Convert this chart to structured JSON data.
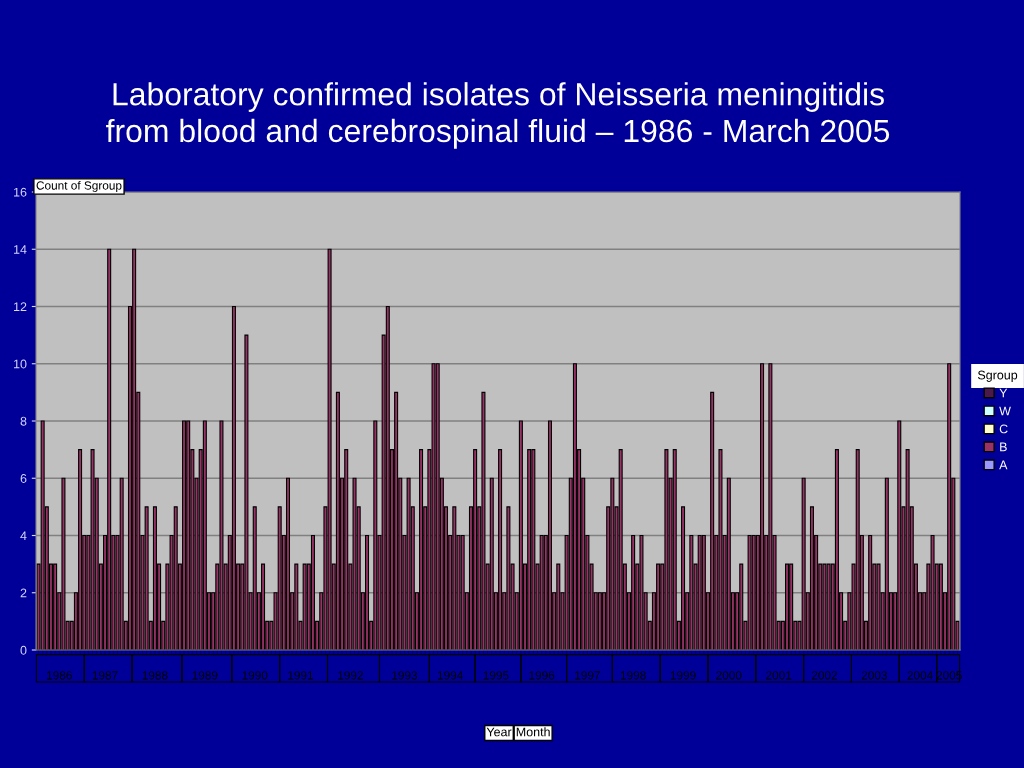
{
  "chart_data": {
    "type": "bar",
    "title": "Laboratory confirmed isolates of Neisseria meningitidis\nfrom blood and cerebrospinal fluid – 1986 - March 2005",
    "ylabel": "Count of Sgroup",
    "legend_title": "Sgroup",
    "legend": "right",
    "annotations": [
      "Year",
      "Month"
    ],
    "categories": [
      null,
      null,
      null,
      null,
      null,
      "1986",
      null,
      null,
      null,
      null,
      null,
      null,
      null,
      null,
      null,
      null,
      "1987",
      null,
      null,
      null,
      null,
      null,
      null,
      null,
      null,
      null,
      null,
      null,
      "1988",
      null,
      null,
      null,
      null,
      null,
      null,
      null,
      null,
      null,
      null,
      null,
      "1989",
      null,
      null,
      null,
      null,
      null,
      null,
      null,
      null,
      null,
      null,
      null,
      "1990",
      null,
      null,
      null,
      null,
      null,
      null,
      null,
      null,
      null,
      null,
      "1991",
      null,
      null,
      null,
      null,
      null,
      null,
      null,
      null,
      null,
      null,
      null,
      "1992",
      null,
      null,
      null,
      null,
      null,
      null,
      null,
      null,
      null,
      null,
      null,
      null,
      "1993",
      null,
      null,
      null,
      null,
      null,
      null,
      null,
      null,
      null,
      null,
      "1994",
      null,
      null,
      null,
      null,
      null,
      null,
      null,
      null,
      null,
      null,
      "1995",
      null,
      null,
      null,
      null,
      null,
      null,
      null,
      null,
      null,
      null,
      "1996",
      null,
      null,
      null,
      null,
      null,
      null,
      null,
      null,
      null,
      null,
      "1997",
      null,
      null,
      null,
      null,
      null,
      null,
      null,
      null,
      null,
      null,
      "1998",
      null,
      null,
      null,
      null,
      null,
      null,
      null,
      null,
      null,
      null,
      null,
      "1999",
      null,
      null,
      null,
      null,
      null,
      null,
      null,
      null,
      null,
      null,
      "2000",
      null,
      null,
      null,
      null,
      null,
      null,
      null,
      null,
      null,
      null,
      null,
      "2001",
      null,
      null,
      null,
      null,
      null,
      null,
      null,
      null,
      null,
      null,
      "2002",
      null,
      null,
      null,
      null,
      null,
      null,
      null,
      null,
      null,
      null,
      null,
      "2003",
      null,
      null,
      null,
      null,
      null,
      null,
      null,
      null,
      null,
      null,
      "2004",
      null,
      null,
      null,
      null,
      null,
      null,
      "2005",
      null,
      null
    ],
    "ylim": [
      0,
      16
    ],
    "yticks": [
      0,
      2,
      4,
      6,
      8,
      10,
      12,
      14,
      16
    ],
    "grid": "y",
    "series": [
      {
        "name": "A",
        "color": "#9999ff",
        "values": [
          null,
          null,
          null,
          null,
          null,
          null,
          null,
          null,
          null,
          null,
          null,
          null,
          null,
          null,
          null,
          null,
          null,
          null,
          null,
          null,
          null,
          null,
          null,
          null,
          null,
          null,
          null,
          null,
          null,
          null,
          null,
          null,
          null,
          null,
          null,
          null,
          null,
          null,
          null,
          null,
          null,
          null,
          null,
          null,
          null,
          null,
          null,
          null,
          null,
          null,
          null,
          null,
          null,
          null,
          null,
          null,
          null,
          null,
          null,
          null,
          null,
          null,
          null,
          null,
          null,
          null,
          null,
          null,
          null,
          null,
          null,
          null,
          null,
          null,
          null,
          null,
          null,
          null,
          null,
          null,
          null,
          null,
          null,
          null,
          null,
          null,
          null,
          null,
          null,
          null,
          null,
          null,
          null,
          null,
          null,
          null,
          null,
          null,
          null,
          null,
          null,
          null,
          null,
          null,
          null,
          null,
          null,
          null,
          null,
          null,
          null,
          null,
          null,
          null,
          null,
          null,
          null,
          null,
          null,
          null,
          null,
          null,
          null,
          null,
          null,
          null,
          null,
          null,
          null,
          null,
          null,
          null,
          null,
          null,
          null,
          null,
          null,
          null,
          null,
          null,
          null,
          null,
          null,
          null,
          null,
          null,
          null,
          null,
          null,
          null,
          null,
          null,
          null,
          null,
          null,
          null,
          null,
          null,
          null,
          null,
          null,
          null,
          null,
          null,
          null,
          null,
          null,
          null,
          null,
          null,
          null,
          null,
          null,
          null,
          null,
          null,
          null,
          null,
          null,
          null,
          null,
          null,
          null,
          null,
          null,
          null,
          null,
          null,
          null,
          null,
          null,
          null,
          null,
          null,
          null,
          null,
          null,
          null,
          null,
          null,
          null,
          null,
          null,
          null,
          null,
          null,
          null,
          null,
          null,
          null,
          null,
          null,
          null,
          null,
          null,
          null,
          null,
          null,
          null,
          null,
          null,
          null
        ]
      },
      {
        "name": "B",
        "color": "#993366",
        "values": [
          3,
          8,
          5,
          3,
          3,
          2,
          6,
          1,
          1,
          2,
          7,
          4,
          4,
          7,
          6,
          3,
          4,
          14,
          4,
          4,
          6,
          1,
          12,
          14,
          9,
          4,
          5,
          1,
          5,
          3,
          1,
          3,
          4,
          5,
          3,
          8,
          8,
          7,
          6,
          7,
          8,
          2,
          2,
          3,
          8,
          3,
          4,
          12,
          3,
          3,
          11,
          2,
          5,
          2,
          3,
          1,
          1,
          2,
          5,
          4,
          6,
          2,
          3,
          1,
          3,
          3,
          4,
          1,
          2,
          5,
          14,
          3,
          9,
          6,
          7,
          3,
          6,
          5,
          2,
          4,
          1,
          8,
          4,
          11,
          12,
          7,
          9,
          6,
          4,
          6,
          5,
          2,
          7,
          5,
          7,
          10,
          10,
          6,
          5,
          4,
          5,
          4,
          4,
          2,
          5,
          7,
          5,
          9,
          3,
          6,
          2,
          7,
          2,
          5,
          3,
          2,
          8,
          3,
          7,
          7,
          3,
          4,
          4,
          8,
          2,
          3,
          2,
          4,
          6,
          10,
          7,
          6,
          4,
          3,
          2,
          2,
          2,
          5,
          6,
          5,
          7,
          3,
          2,
          4,
          3,
          4,
          2,
          1,
          2,
          3,
          3,
          7,
          6,
          7,
          1,
          5,
          2,
          4,
          3,
          4,
          4,
          2,
          9,
          4,
          7,
          4,
          6,
          2,
          2,
          3,
          1,
          4,
          4,
          4,
          10,
          4,
          10,
          4,
          1,
          1,
          3,
          3,
          1,
          1,
          6,
          2,
          5,
          4,
          3,
          3,
          3,
          3,
          7,
          2,
          1,
          2,
          3,
          7,
          4,
          1,
          4,
          3,
          3,
          2,
          6,
          2,
          2,
          8,
          5,
          7,
          5,
          3,
          2,
          2,
          3,
          4,
          3,
          3,
          2,
          10,
          6,
          1
        ]
      },
      {
        "name": "C",
        "color": "#ffffcc",
        "values": [
          null,
          null,
          null,
          null,
          null,
          null,
          null,
          null,
          null,
          null,
          null,
          null,
          null,
          null,
          null,
          null,
          null,
          null,
          null,
          null,
          null,
          null,
          null,
          null,
          null,
          null,
          null,
          null,
          null,
          null,
          null,
          null,
          null,
          null,
          null,
          null,
          null,
          null,
          null,
          null,
          null,
          null,
          null,
          null,
          null,
          null,
          null,
          null,
          null,
          null,
          null,
          null,
          null,
          null,
          null,
          null,
          null,
          null,
          null,
          null,
          null,
          null,
          null,
          null,
          null,
          null,
          null,
          null,
          null,
          null,
          null,
          null,
          null,
          null,
          null,
          null,
          null,
          null,
          null,
          null,
          null,
          null,
          null,
          null,
          null,
          null,
          null,
          null,
          null,
          null,
          null,
          null,
          null,
          null,
          null,
          null,
          null,
          null,
          null,
          null,
          null,
          null,
          null,
          null,
          null,
          null,
          null,
          null,
          null,
          null,
          null,
          null,
          null,
          null,
          null,
          null,
          null,
          null,
          null,
          null,
          null,
          null,
          null,
          null,
          null,
          null,
          null,
          null,
          null,
          null,
          null,
          null,
          null,
          null,
          null,
          null,
          null,
          null,
          null,
          null,
          null,
          null,
          null,
          null,
          null,
          null,
          null,
          null,
          null,
          null,
          null,
          null,
          null,
          null,
          null,
          null,
          null,
          null,
          null,
          null,
          null,
          null,
          null,
          null,
          null,
          null,
          null,
          null,
          null,
          null,
          null,
          null,
          null,
          null,
          null,
          null,
          null,
          null,
          null,
          null,
          null,
          null,
          null,
          null,
          null,
          null,
          null,
          null,
          null,
          null,
          null,
          null,
          null,
          null,
          null,
          null,
          null,
          null,
          null,
          null,
          null,
          null,
          null,
          null,
          null,
          null,
          null,
          null,
          null,
          null,
          null,
          null,
          null,
          null,
          null,
          null,
          null,
          null,
          null,
          null,
          null,
          null
        ]
      },
      {
        "name": "W",
        "color": "#ccffff",
        "values": [
          null,
          null,
          null,
          null,
          null,
          null,
          null,
          null,
          null,
          null,
          null,
          null,
          null,
          null,
          null,
          null,
          null,
          null,
          null,
          null,
          null,
          null,
          null,
          null,
          null,
          null,
          null,
          null,
          null,
          null,
          null,
          null,
          null,
          null,
          null,
          null,
          null,
          null,
          null,
          null,
          null,
          null,
          null,
          null,
          null,
          null,
          null,
          null,
          null,
          null,
          null,
          null,
          null,
          null,
          null,
          null,
          null,
          null,
          null,
          null,
          null,
          null,
          null,
          null,
          null,
          null,
          null,
          null,
          null,
          null,
          null,
          null,
          null,
          null,
          null,
          null,
          null,
          null,
          null,
          null,
          null,
          null,
          null,
          null,
          null,
          null,
          null,
          null,
          null,
          null,
          null,
          null,
          null,
          null,
          null,
          null,
          null,
          null,
          null,
          null,
          null,
          null,
          null,
          null,
          null,
          null,
          null,
          null,
          null,
          null,
          null,
          null,
          null,
          null,
          null,
          null,
          null,
          null,
          null,
          null,
          null,
          null,
          null,
          null,
          null,
          null,
          null,
          null,
          null,
          null,
          null,
          null,
          null,
          null,
          null,
          null,
          null,
          null,
          null,
          null,
          null,
          null,
          null,
          null,
          null,
          null,
          null,
          null,
          null,
          null,
          null,
          null,
          null,
          null,
          null,
          null,
          null,
          null,
          null,
          null,
          null,
          null,
          null,
          null,
          null,
          null,
          null,
          null,
          null,
          null,
          null,
          null,
          null,
          null,
          null,
          null,
          null,
          null,
          null,
          null,
          null,
          null,
          null,
          null,
          null,
          null,
          null,
          null,
          null,
          null,
          null,
          null,
          null,
          null,
          null,
          null,
          null,
          null,
          null,
          null,
          null,
          null,
          null,
          null,
          null,
          null,
          null,
          null,
          null,
          null,
          null,
          null,
          null,
          null,
          null,
          null,
          null,
          null,
          null,
          null,
          null,
          null
        ]
      },
      {
        "name": "Y",
        "color": "#4b1a4b",
        "values": [
          null,
          null,
          null,
          null,
          null,
          null,
          null,
          null,
          null,
          null,
          null,
          null,
          null,
          null,
          null,
          null,
          null,
          null,
          null,
          null,
          null,
          null,
          null,
          null,
          null,
          null,
          null,
          null,
          null,
          null,
          null,
          null,
          null,
          null,
          null,
          null,
          null,
          null,
          null,
          null,
          null,
          null,
          null,
          null,
          null,
          null,
          null,
          null,
          null,
          null,
          null,
          null,
          null,
          null,
          null,
          null,
          null,
          null,
          null,
          null,
          null,
          null,
          null,
          null,
          null,
          null,
          null,
          null,
          null,
          null,
          null,
          null,
          null,
          null,
          null,
          null,
          null,
          null,
          null,
          null,
          null,
          null,
          null,
          null,
          null,
          null,
          null,
          null,
          null,
          null,
          null,
          null,
          null,
          null,
          null,
          null,
          null,
          null,
          null,
          null,
          null,
          null,
          null,
          null,
          null,
          null,
          null,
          null,
          null,
          null,
          null,
          null,
          null,
          null,
          null,
          null,
          null,
          null,
          null,
          null,
          null,
          null,
          null,
          null,
          null,
          null,
          null,
          null,
          null,
          null,
          null,
          null,
          null,
          null,
          null,
          null,
          null,
          null,
          null,
          null,
          null,
          null,
          null,
          null,
          null,
          null,
          null,
          null,
          null,
          null,
          null,
          null,
          null,
          null,
          null,
          null,
          null,
          null,
          null,
          null,
          null,
          null,
          null,
          null,
          null,
          null,
          null,
          null,
          null,
          null,
          null,
          null,
          null,
          null,
          null,
          null,
          null,
          null,
          null,
          null,
          null,
          null,
          null,
          null,
          null,
          null,
          null,
          null,
          null,
          null,
          null,
          null,
          null,
          null,
          null,
          null,
          null,
          null,
          null,
          null,
          null,
          null,
          null,
          null,
          null,
          null,
          null,
          null,
          null,
          null,
          null,
          null,
          null,
          null,
          null,
          null,
          null,
          null,
          null,
          null,
          null,
          null
        ]
      }
    ]
  }
}
